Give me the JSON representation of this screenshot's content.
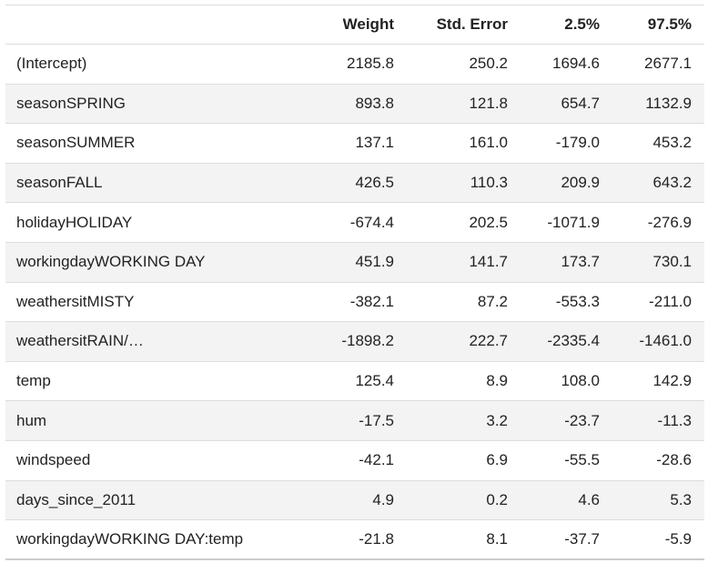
{
  "table": {
    "headers": [
      "",
      "Weight",
      "Std. Error",
      "2.5%",
      "97.5%"
    ],
    "rows": [
      [
        "(Intercept)",
        "2185.8",
        "250.2",
        "1694.6",
        "2677.1"
      ],
      [
        "seasonSPRING",
        "893.8",
        "121.8",
        "654.7",
        "1132.9"
      ],
      [
        "seasonSUMMER",
        "137.1",
        "161.0",
        "-179.0",
        "453.2"
      ],
      [
        "seasonFALL",
        "426.5",
        "110.3",
        "209.9",
        "643.2"
      ],
      [
        "holidayHOLIDAY",
        "-674.4",
        "202.5",
        "-1071.9",
        "-276.9"
      ],
      [
        "workingdayWORKING DAY",
        "451.9",
        "141.7",
        "173.7",
        "730.1"
      ],
      [
        "weathersitMISTY",
        "-382.1",
        "87.2",
        "-553.3",
        "-211.0"
      ],
      [
        "weathersitRAIN/…",
        "-1898.2",
        "222.7",
        "-2335.4",
        "-1461.0"
      ],
      [
        "temp",
        "125.4",
        "8.9",
        "108.0",
        "142.9"
      ],
      [
        "hum",
        "-17.5",
        "3.2",
        "-23.7",
        "-11.3"
      ],
      [
        "windspeed",
        "-42.1",
        "6.9",
        "-55.5",
        "-28.6"
      ],
      [
        "days_since_2011",
        "4.9",
        "0.2",
        "4.6",
        "5.3"
      ],
      [
        "workingdayWORKING DAY:temp",
        "-21.8",
        "8.1",
        "-37.7",
        "-5.9"
      ]
    ]
  }
}
